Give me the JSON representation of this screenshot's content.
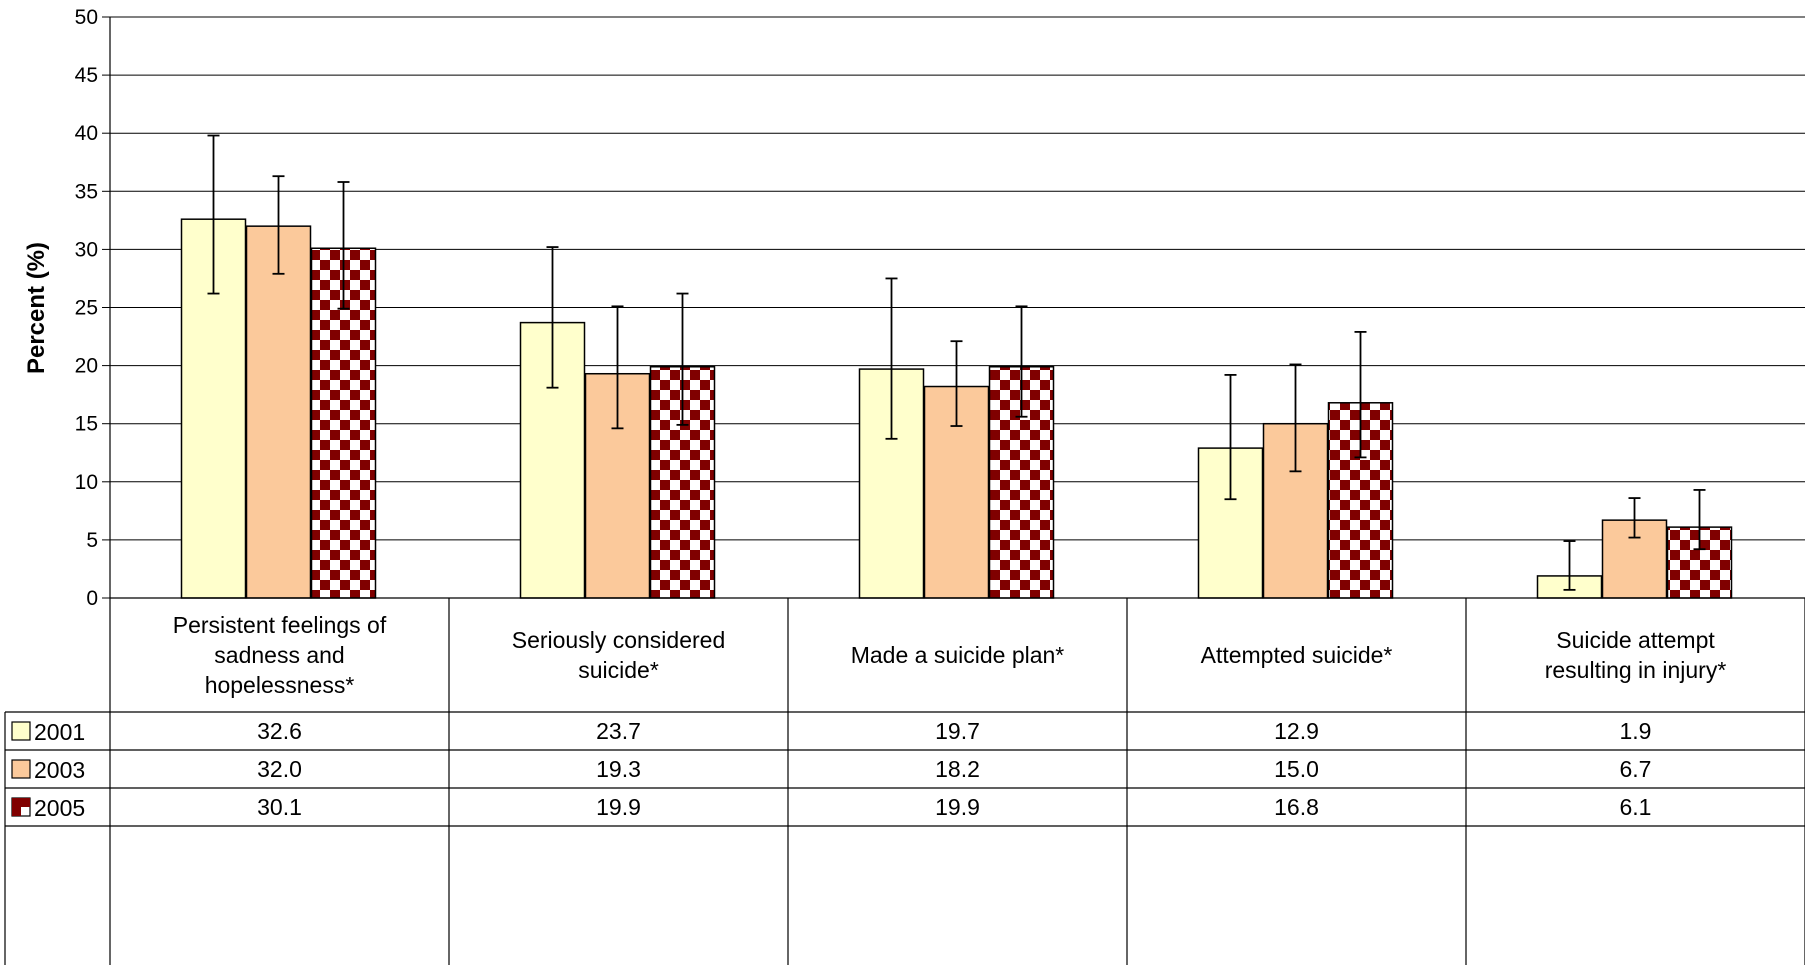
{
  "chart_data": {
    "type": "bar",
    "ylabel": "Percent (%)",
    "ylim": [
      0,
      50
    ],
    "yticks": [
      0,
      5,
      10,
      15,
      20,
      25,
      30,
      35,
      40,
      45,
      50
    ],
    "grid": true,
    "legend": "data-table",
    "categories": [
      [
        "Persistent feelings of",
        "sadness and",
        "hopelessness*"
      ],
      [
        "Seriously considered",
        "suicide*"
      ],
      [
        "Made a suicide plan*"
      ],
      [
        "Attempted suicide*"
      ],
      [
        "Suicide attempt",
        "resulting in injury*"
      ]
    ],
    "series": [
      {
        "name": "2001",
        "color": "#ffffcc",
        "pattern": "solid",
        "values": [
          32.6,
          23.7,
          19.7,
          12.9,
          1.9
        ],
        "labels": [
          "32.6",
          "23.7",
          "19.7",
          "12.9",
          "1.9"
        ],
        "err_low": [
          26.2,
          18.1,
          13.7,
          8.5,
          0.7
        ],
        "err_high": [
          39.8,
          30.2,
          27.5,
          19.2,
          4.9
        ]
      },
      {
        "name": "2003",
        "color": "#fbc99b",
        "pattern": "solid",
        "values": [
          32.0,
          19.3,
          18.2,
          15.0,
          6.7
        ],
        "labels": [
          "32.0",
          "19.3",
          "18.2",
          "15.0",
          "6.7"
        ],
        "err_low": [
          27.9,
          14.6,
          14.8,
          10.9,
          5.2
        ],
        "err_high": [
          36.3,
          25.1,
          22.1,
          20.1,
          8.6
        ]
      },
      {
        "name": "2005",
        "color": "#800000",
        "pattern": "zigzag",
        "values": [
          30.1,
          19.9,
          19.9,
          16.8,
          6.1
        ],
        "labels": [
          "30.1",
          "19.9",
          "19.9",
          "16.8",
          "6.1"
        ],
        "err_low": [
          24.9,
          14.9,
          15.6,
          12.1,
          4.2
        ],
        "err_high": [
          35.8,
          26.2,
          25.1,
          22.9,
          9.3
        ]
      }
    ]
  }
}
